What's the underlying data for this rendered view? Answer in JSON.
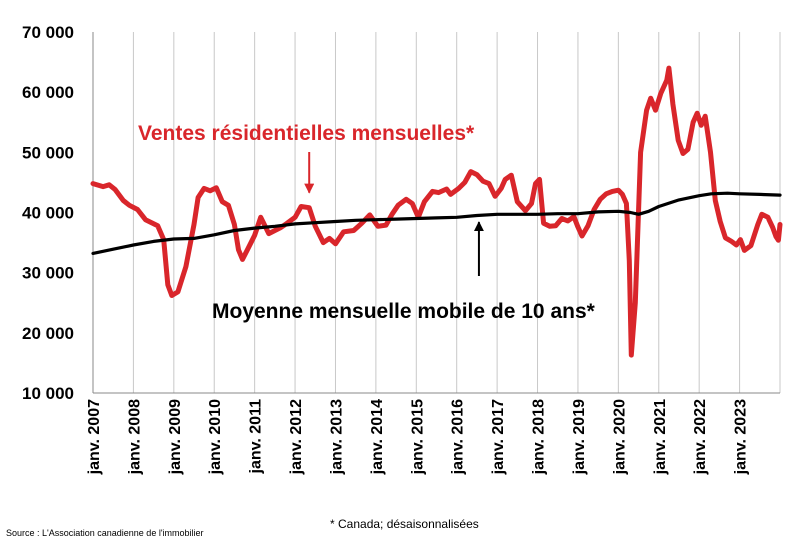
{
  "chart_data": {
    "type": "line",
    "title": "",
    "xlabel": "",
    "ylabel": "",
    "ylim": [
      10000,
      70000
    ],
    "xlim": [
      2007.0,
      2024.0
    ],
    "grid": "vertical lines at each January",
    "y_ticks": [
      "10 000",
      "20 000",
      "30 000",
      "40 000",
      "50 000",
      "60 000",
      "70 000"
    ],
    "x_ticks": [
      "janv. 2007",
      "janv. 2008",
      "janv. 2009",
      "janv. 2010",
      "janv. 2011",
      "janv. 2012",
      "janv. 2013",
      "janv. 2014",
      "janv. 2015",
      "janv. 2016",
      "janv. 2017",
      "janv. 2018",
      "janv. 2019",
      "janv. 2020",
      "janv. 2021",
      "janv. 2022",
      "janv. 2023"
    ],
    "series": [
      {
        "name": "Ventes résidentielles mensuelles*",
        "color": "#d9262b",
        "points": [
          [
            2007.0,
            44800
          ],
          [
            2007.25,
            44300
          ],
          [
            2007.4,
            44600
          ],
          [
            2007.55,
            43800
          ],
          [
            2007.75,
            42000
          ],
          [
            2007.9,
            41200
          ],
          [
            2008.1,
            40500
          ],
          [
            2008.3,
            38800
          ],
          [
            2008.6,
            37800
          ],
          [
            2008.75,
            35500
          ],
          [
            2008.85,
            28000
          ],
          [
            2008.95,
            26200
          ],
          [
            2009.1,
            26800
          ],
          [
            2009.3,
            31000
          ],
          [
            2009.5,
            38000
          ],
          [
            2009.6,
            42500
          ],
          [
            2009.75,
            44000
          ],
          [
            2009.9,
            43600
          ],
          [
            2010.05,
            44100
          ],
          [
            2010.2,
            41800
          ],
          [
            2010.35,
            41200
          ],
          [
            2010.5,
            38000
          ],
          [
            2010.6,
            33800
          ],
          [
            2010.7,
            32200
          ],
          [
            2010.85,
            34200
          ],
          [
            2011.0,
            36200
          ],
          [
            2011.15,
            39200
          ],
          [
            2011.35,
            36500
          ],
          [
            2011.5,
            37000
          ],
          [
            2011.65,
            37500
          ],
          [
            2011.8,
            38200
          ],
          [
            2012.0,
            39200
          ],
          [
            2012.15,
            41000
          ],
          [
            2012.35,
            40800
          ],
          [
            2012.5,
            37700
          ],
          [
            2012.7,
            35000
          ],
          [
            2012.85,
            35700
          ],
          [
            2013.0,
            34800
          ],
          [
            2013.2,
            36800
          ],
          [
            2013.45,
            37000
          ],
          [
            2013.65,
            38200
          ],
          [
            2013.85,
            39600
          ],
          [
            2014.05,
            37700
          ],
          [
            2014.25,
            37900
          ],
          [
            2014.4,
            39700
          ],
          [
            2014.55,
            41200
          ],
          [
            2014.75,
            42200
          ],
          [
            2014.9,
            41500
          ],
          [
            2015.05,
            39200
          ],
          [
            2015.2,
            41800
          ],
          [
            2015.4,
            43500
          ],
          [
            2015.55,
            43300
          ],
          [
            2015.75,
            43900
          ],
          [
            2015.85,
            43000
          ],
          [
            2016.05,
            44000
          ],
          [
            2016.2,
            45000
          ],
          [
            2016.35,
            46800
          ],
          [
            2016.5,
            46300
          ],
          [
            2016.65,
            45200
          ],
          [
            2016.8,
            44800
          ],
          [
            2016.95,
            42700
          ],
          [
            2017.1,
            44000
          ],
          [
            2017.2,
            45500
          ],
          [
            2017.35,
            46200
          ],
          [
            2017.5,
            41800
          ],
          [
            2017.7,
            40300
          ],
          [
            2017.85,
            41500
          ],
          [
            2017.95,
            44800
          ],
          [
            2018.05,
            45500
          ],
          [
            2018.15,
            38200
          ],
          [
            2018.3,
            37700
          ],
          [
            2018.45,
            37800
          ],
          [
            2018.6,
            39000
          ],
          [
            2018.75,
            38600
          ],
          [
            2018.9,
            39300
          ],
          [
            2019.0,
            37600
          ],
          [
            2019.1,
            36100
          ],
          [
            2019.25,
            37800
          ],
          [
            2019.4,
            40500
          ],
          [
            2019.55,
            42200
          ],
          [
            2019.7,
            43100
          ],
          [
            2019.85,
            43500
          ],
          [
            2020.0,
            43700
          ],
          [
            2020.1,
            43000
          ],
          [
            2020.2,
            41500
          ],
          [
            2020.27,
            32000
          ],
          [
            2020.32,
            16300
          ],
          [
            2020.42,
            25000
          ],
          [
            2020.55,
            50000
          ],
          [
            2020.7,
            57000
          ],
          [
            2020.8,
            59000
          ],
          [
            2020.92,
            57000
          ],
          [
            2021.05,
            59800
          ],
          [
            2021.2,
            62000
          ],
          [
            2021.25,
            64000
          ],
          [
            2021.35,
            58000
          ],
          [
            2021.48,
            52000
          ],
          [
            2021.6,
            49800
          ],
          [
            2021.72,
            50500
          ],
          [
            2021.85,
            55000
          ],
          [
            2021.95,
            56500
          ],
          [
            2022.05,
            54500
          ],
          [
            2022.15,
            56000
          ],
          [
            2022.28,
            50000
          ],
          [
            2022.4,
            42000
          ],
          [
            2022.52,
            38500
          ],
          [
            2022.65,
            35800
          ],
          [
            2022.8,
            35200
          ],
          [
            2022.92,
            34600
          ],
          [
            2023.02,
            35500
          ],
          [
            2023.12,
            33700
          ],
          [
            2023.28,
            34500
          ],
          [
            2023.45,
            38000
          ],
          [
            2023.55,
            39700
          ],
          [
            2023.7,
            39200
          ],
          [
            2023.82,
            37500
          ],
          [
            2023.9,
            36000
          ],
          [
            2023.96,
            35400
          ],
          [
            2024.0,
            38000
          ]
        ]
      },
      {
        "name": "Moyenne mensuelle mobile de 10 ans*",
        "color": "#000000",
        "points": [
          [
            2007.0,
            33200
          ],
          [
            2007.5,
            33900
          ],
          [
            2008.0,
            34600
          ],
          [
            2008.5,
            35200
          ],
          [
            2009.0,
            35600
          ],
          [
            2009.5,
            35700
          ],
          [
            2010.0,
            36300
          ],
          [
            2010.5,
            37000
          ],
          [
            2011.0,
            37400
          ],
          [
            2011.5,
            37700
          ],
          [
            2012.0,
            38100
          ],
          [
            2012.5,
            38300
          ],
          [
            2013.0,
            38500
          ],
          [
            2013.5,
            38700
          ],
          [
            2014.0,
            38800
          ],
          [
            2014.5,
            38900
          ],
          [
            2015.0,
            39000
          ],
          [
            2015.5,
            39100
          ],
          [
            2016.0,
            39200
          ],
          [
            2016.5,
            39500
          ],
          [
            2017.0,
            39700
          ],
          [
            2017.5,
            39700
          ],
          [
            2018.0,
            39700
          ],
          [
            2018.5,
            39800
          ],
          [
            2019.0,
            39800
          ],
          [
            2019.5,
            40100
          ],
          [
            2020.0,
            40200
          ],
          [
            2020.3,
            40000
          ],
          [
            2020.5,
            39700
          ],
          [
            2020.75,
            40200
          ],
          [
            2021.0,
            41000
          ],
          [
            2021.5,
            42100
          ],
          [
            2022.0,
            42800
          ],
          [
            2022.3,
            43100
          ],
          [
            2022.7,
            43200
          ],
          [
            2023.0,
            43100
          ],
          [
            2023.5,
            43000
          ],
          [
            2024.0,
            42900
          ]
        ]
      }
    ],
    "annotations": [
      {
        "text": "Ventes résidentielles mensuelles*",
        "arrow_to": [
          2012.35,
          41300
        ]
      },
      {
        "text": "Moyenne mensuelle mobile de 10 ans*",
        "arrow_to": [
          2016.55,
          39400
        ]
      }
    ],
    "footnote": "* Canada; désaisonnalisées",
    "source": "Source : L'Association canadienne de l'immobilier"
  }
}
